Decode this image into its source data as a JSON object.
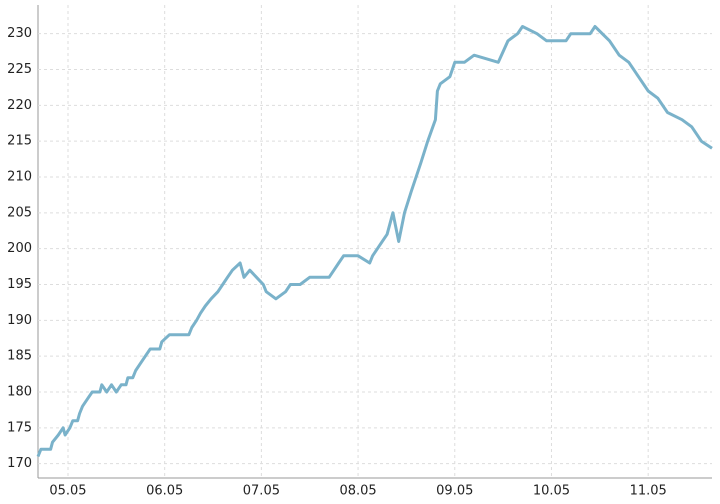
{
  "chart_data": {
    "type": "line",
    "x": [
      4.69,
      4.72,
      4.82,
      4.84,
      4.9,
      4.95,
      4.97,
      5.02,
      5.05,
      5.1,
      5.12,
      5.15,
      5.2,
      5.25,
      5.33,
      5.35,
      5.4,
      5.45,
      5.5,
      5.55,
      5.6,
      5.62,
      5.67,
      5.7,
      5.75,
      5.8,
      5.85,
      5.95,
      5.97,
      6.05,
      6.25,
      6.28,
      6.33,
      6.37,
      6.42,
      6.48,
      6.55,
      6.6,
      6.65,
      6.7,
      6.78,
      6.82,
      6.88,
      6.95,
      7.02,
      7.05,
      7.15,
      7.25,
      7.3,
      7.4,
      7.5,
      7.7,
      7.75,
      7.8,
      7.85,
      8.0,
      8.12,
      8.15,
      8.2,
      8.3,
      8.36,
      8.42,
      8.48,
      8.55,
      8.65,
      8.72,
      8.8,
      8.82,
      8.85,
      8.95,
      9.0,
      9.1,
      9.2,
      9.45,
      9.55,
      9.65,
      9.7,
      9.85,
      9.95,
      10.05,
      10.15,
      10.2,
      10.4,
      10.45,
      10.6,
      10.7,
      10.8,
      10.9,
      11.0,
      11.1,
      11.2,
      11.35,
      11.45,
      11.55,
      11.66
    ],
    "series": [
      {
        "color": "#7ab2ca",
        "values": [
          171,
          172,
          172,
          173,
          174,
          175,
          174,
          175,
          176,
          176,
          177,
          178,
          179,
          180,
          180,
          181,
          180,
          181,
          180,
          181,
          181,
          182,
          182,
          183,
          184,
          185,
          186,
          186,
          187,
          188,
          188,
          189,
          190,
          191,
          192,
          193,
          194,
          195,
          196,
          197,
          198,
          196,
          197,
          196,
          195,
          194,
          193,
          194,
          195,
          195,
          196,
          196,
          197,
          198,
          199,
          199,
          198,
          199,
          200,
          202,
          205,
          201,
          205,
          208,
          212,
          215,
          218,
          222,
          223,
          224,
          226,
          226,
          227,
          226,
          229,
          230,
          231,
          230,
          229,
          229,
          229,
          230,
          230,
          231,
          229,
          227,
          226,
          224,
          222,
          221,
          219,
          218,
          217,
          215,
          214
        ]
      }
    ],
    "xlim": [
      4.69,
      11.66
    ],
    "xticks": [
      {
        "value": 5,
        "label": "05.05"
      },
      {
        "value": 6,
        "label": "06.05"
      },
      {
        "value": 7,
        "label": "07.05"
      },
      {
        "value": 8,
        "label": "08.05"
      },
      {
        "value": 9,
        "label": "09.05"
      },
      {
        "value": 10,
        "label": "10.05"
      },
      {
        "value": 11,
        "label": "11.05"
      }
    ],
    "ylim": [
      168,
      234
    ],
    "yticks": [
      170,
      175,
      180,
      185,
      190,
      195,
      200,
      205,
      210,
      215,
      220,
      225,
      230
    ],
    "grid": true
  }
}
